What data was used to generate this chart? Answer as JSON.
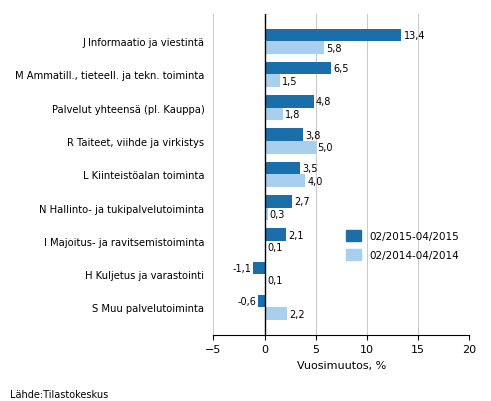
{
  "categories": [
    "J Informaatio ja viestintä",
    "M Ammatill., tieteell. ja tekn. toiminta",
    "Palvelut yhteensä (pl. Kauppa)",
    "R Taiteet, viihde ja virkistys",
    "L Kiinteistöalan toiminta",
    "N Hallinto- ja tukipalvelutoiminta",
    "I Majoitus- ja ravitsemistoiminta",
    "H Kuljetus ja varastointi",
    "S Muu palvelutoiminta"
  ],
  "values_2015": [
    13.4,
    6.5,
    4.8,
    3.8,
    3.5,
    2.7,
    2.1,
    -1.1,
    -0.6
  ],
  "values_2014": [
    5.8,
    1.5,
    1.8,
    5.0,
    4.0,
    0.3,
    0.1,
    0.1,
    2.2
  ],
  "color_2015": "#1a6fab",
  "color_2014": "#a8d0ee",
  "xlim": [
    -5,
    20
  ],
  "xticks": [
    -5,
    0,
    5,
    10,
    15,
    20
  ],
  "xlabel": "Vuosimuutos, %",
  "legend_label_2015": "02/2015-04/2015",
  "legend_label_2014": "02/2014-04/2014",
  "source_label": "Lähde:Tilastokeskus",
  "bar_height": 0.38
}
